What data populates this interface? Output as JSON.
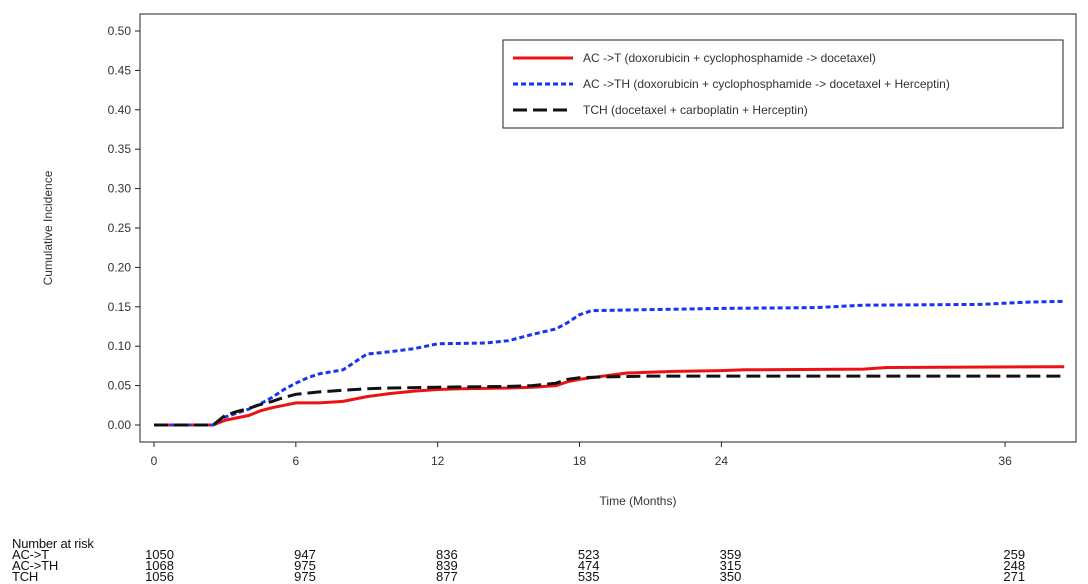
{
  "chart_data": {
    "type": "line",
    "title": "",
    "xlabel": "Time (Months)",
    "ylabel": "Cumulative Incidence",
    "xlim": [
      0,
      39
    ],
    "ylim": [
      0,
      0.5
    ],
    "x_ticks": [
      0,
      6,
      12,
      18,
      24,
      36
    ],
    "y_ticks": [
      0.0,
      0.05,
      0.1,
      0.15,
      0.2,
      0.25,
      0.3,
      0.35,
      0.4,
      0.45,
      0.5
    ],
    "y_tick_labels": [
      "0.00",
      "0.05",
      "0.10",
      "0.15",
      "0.20",
      "0.25",
      "0.30",
      "0.35",
      "0.40",
      "0.45",
      "0.50"
    ],
    "legend_position": "top-right",
    "series": [
      {
        "name": "AC ->T (doxorubicin + cyclophosphamide -> docetaxel)",
        "color": "#ee1111",
        "dash": "solid",
        "points": [
          [
            0,
            0
          ],
          [
            2.5,
            0
          ],
          [
            3,
            0.006
          ],
          [
            3.5,
            0.009
          ],
          [
            4,
            0.012
          ],
          [
            4.5,
            0.018
          ],
          [
            5,
            0.022
          ],
          [
            5.5,
            0.025
          ],
          [
            6,
            0.028
          ],
          [
            7,
            0.028
          ],
          [
            8,
            0.03
          ],
          [
            8.5,
            0.033
          ],
          [
            9,
            0.036
          ],
          [
            10,
            0.04
          ],
          [
            11,
            0.043
          ],
          [
            12,
            0.045
          ],
          [
            13,
            0.046
          ],
          [
            15,
            0.047
          ],
          [
            16,
            0.048
          ],
          [
            17,
            0.05
          ],
          [
            17.5,
            0.055
          ],
          [
            18,
            0.058
          ],
          [
            19,
            0.062
          ],
          [
            20,
            0.066
          ],
          [
            22,
            0.068
          ],
          [
            24,
            0.069
          ],
          [
            25,
            0.07
          ],
          [
            30,
            0.071
          ],
          [
            31,
            0.073
          ],
          [
            38.5,
            0.074
          ]
        ]
      },
      {
        "name": "AC ->TH (doxorubicin + cyclophosphamide -> docetaxel + Herceptin)",
        "color": "#1a33ee",
        "dash": "dotted",
        "points": [
          [
            0,
            0
          ],
          [
            2.5,
            0
          ],
          [
            3,
            0.01
          ],
          [
            3.5,
            0.015
          ],
          [
            4,
            0.02
          ],
          [
            4.5,
            0.027
          ],
          [
            5,
            0.035
          ],
          [
            5.5,
            0.045
          ],
          [
            6,
            0.053
          ],
          [
            6.5,
            0.06
          ],
          [
            7,
            0.065
          ],
          [
            8,
            0.07
          ],
          [
            8.5,
            0.08
          ],
          [
            9,
            0.09
          ],
          [
            10,
            0.093
          ],
          [
            11,
            0.097
          ],
          [
            12,
            0.103
          ],
          [
            14,
            0.104
          ],
          [
            15,
            0.107
          ],
          [
            16,
            0.115
          ],
          [
            17,
            0.122
          ],
          [
            17.5,
            0.13
          ],
          [
            18,
            0.14
          ],
          [
            18.5,
            0.145
          ],
          [
            20,
            0.146
          ],
          [
            22,
            0.147
          ],
          [
            24,
            0.148
          ],
          [
            28,
            0.149
          ],
          [
            30,
            0.152
          ],
          [
            35,
            0.153
          ],
          [
            37,
            0.156
          ],
          [
            38.5,
            0.157
          ]
        ]
      },
      {
        "name": "TCH (docetaxel + carboplatin + Herceptin)",
        "color": "#111111",
        "dash": "dashed",
        "points": [
          [
            0,
            0
          ],
          [
            2.5,
            0
          ],
          [
            3,
            0.012
          ],
          [
            3.5,
            0.017
          ],
          [
            4,
            0.021
          ],
          [
            4.5,
            0.026
          ],
          [
            5,
            0.03
          ],
          [
            5.5,
            0.035
          ],
          [
            6,
            0.039
          ],
          [
            7,
            0.042
          ],
          [
            8,
            0.044
          ],
          [
            9,
            0.046
          ],
          [
            10,
            0.047
          ],
          [
            12,
            0.048
          ],
          [
            15,
            0.049
          ],
          [
            16,
            0.05
          ],
          [
            17,
            0.053
          ],
          [
            17.5,
            0.058
          ],
          [
            18,
            0.06
          ],
          [
            19,
            0.061
          ],
          [
            21,
            0.062
          ],
          [
            24,
            0.062
          ],
          [
            30,
            0.062
          ],
          [
            38.5,
            0.062
          ]
        ]
      }
    ],
    "risk_table": {
      "title": "Number at risk",
      "x": [
        0,
        6,
        12,
        18,
        24,
        36
      ],
      "rows": [
        {
          "label": "AC->T",
          "values": [
            "1050",
            "947",
            "836",
            "523",
            "359",
            "259"
          ]
        },
        {
          "label": "AC->TH",
          "values": [
            "1068",
            "975",
            "839",
            "474",
            "315",
            "248"
          ]
        },
        {
          "label": "TCH",
          "values": [
            "1056",
            "975",
            "877",
            "535",
            "350",
            "271"
          ]
        }
      ]
    }
  }
}
